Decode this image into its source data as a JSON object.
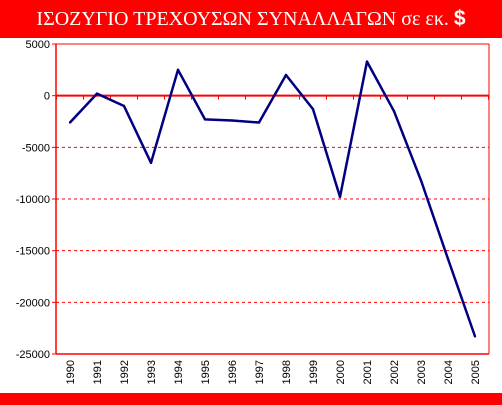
{
  "title_text": "ΙΣΟΖΥΓΙΟ ΤΡΕΧΟΥΣΩΝ ΣΥΝΑΛΛΑΓΩΝ σε εκ.",
  "title_symbol": "$",
  "colors": {
    "banner": "#ff0000",
    "line": "#000080",
    "axes": "#ff0000",
    "gridlines": "#ff0000"
  },
  "chart_data": {
    "type": "line",
    "title": "ΙΣΟΖΥΓΙΟ ΤΡΕΧΟΥΣΩΝ ΣΥΝΑΛΛΑΓΩΝ σε εκ. $",
    "categories": [
      "1990",
      "1991",
      "1992",
      "1993",
      "1994",
      "1995",
      "1996",
      "1997",
      "1998",
      "1999",
      "2000",
      "2001",
      "2002",
      "2003",
      "2004",
      "2005"
    ],
    "series": [
      {
        "values": [
          -2600,
          200,
          -1000,
          -6500,
          2500,
          -2300,
          -2400,
          -2600,
          2000,
          -1300,
          -9800,
          3300,
          -1500,
          -8200,
          -15800,
          -23300
        ]
      }
    ],
    "ylim": [
      -25000,
      5000
    ],
    "yticks": [
      5000,
      0,
      -5000,
      -10000,
      -15000,
      -20000,
      -25000
    ],
    "ytick_labels": [
      "5000",
      "0",
      "-5000",
      "-10000",
      "-15000",
      "-20000",
      "-25000"
    ],
    "grid": "horizontal dashed",
    "legend": "none"
  }
}
